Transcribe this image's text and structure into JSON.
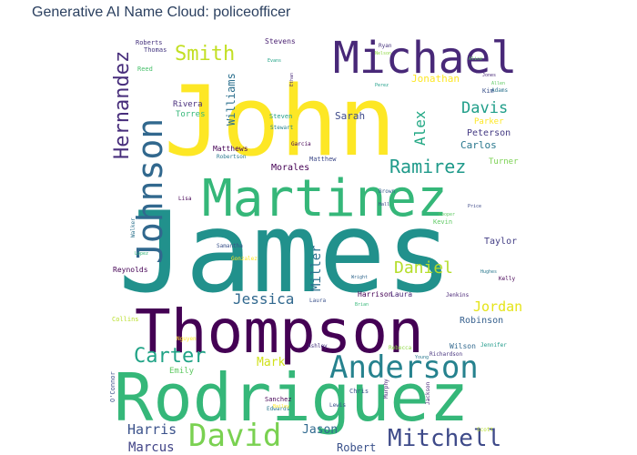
{
  "chart_data": {
    "type": "wordcloud",
    "title": "Generative AI Name Cloud: policeofficer",
    "palette": "viridis",
    "words": [
      {
        "text": "James",
        "color": "#21918c"
      },
      {
        "text": "John",
        "color": "#fde725"
      },
      {
        "text": "Rodriguez",
        "color": "#35b779"
      },
      {
        "text": "Thompson",
        "color": "#440154"
      },
      {
        "text": "Martinez",
        "color": "#35b779"
      },
      {
        "text": "Johnson",
        "color": "#31688e"
      },
      {
        "text": "Michael",
        "color": "#482878"
      },
      {
        "text": "Anderson",
        "color": "#26828e"
      },
      {
        "text": "David",
        "color": "#7ad151"
      },
      {
        "text": "Mitchell",
        "color": "#3e4a89"
      },
      {
        "text": "Hernandez",
        "color": "#472d7b"
      },
      {
        "text": "Ramirez",
        "color": "#1f9a8a"
      },
      {
        "text": "Carter",
        "color": "#20a386"
      },
      {
        "text": "Daniel",
        "color": "#b5de2b"
      },
      {
        "text": "Smith",
        "color": "#c2df23"
      },
      {
        "text": "Jessica",
        "color": "#31688e"
      },
      {
        "text": "Davis",
        "color": "#1f9e89"
      },
      {
        "text": "Alex",
        "color": "#22a884"
      },
      {
        "text": "Harris",
        "color": "#3b528b"
      },
      {
        "text": "Marcus",
        "color": "#414487"
      },
      {
        "text": "Jordan",
        "color": "#e5e419"
      },
      {
        "text": "Jonathan",
        "color": "#fde725"
      },
      {
        "text": "Miller",
        "color": "#2c728e"
      },
      {
        "text": "Williams",
        "color": "#2d708e"
      },
      {
        "text": "Jason",
        "color": "#30698e"
      },
      {
        "text": "Robert",
        "color": "#3b528b"
      },
      {
        "text": "Mark",
        "color": "#d0e11c"
      },
      {
        "text": "Robinson",
        "color": "#355f8d"
      },
      {
        "text": "Carlos",
        "color": "#2a788e"
      },
      {
        "text": "Sarah",
        "color": "#3e4a89"
      },
      {
        "text": "Taylor",
        "color": "#433e85"
      },
      {
        "text": "Turner",
        "color": "#7ad151"
      },
      {
        "text": "Parker",
        "color": "#fde725"
      },
      {
        "text": "Morales",
        "color": "#440154"
      },
      {
        "text": "Peterson",
        "color": "#443a83"
      },
      {
        "text": "Emily",
        "color": "#5ec962"
      },
      {
        "text": "Rivera",
        "color": "#472d7b"
      },
      {
        "text": "Torres",
        "color": "#35b779"
      },
      {
        "text": "Stevens",
        "color": "#481f70"
      },
      {
        "text": "Matthews",
        "color": "#440154"
      },
      {
        "text": "Robertson",
        "color": "#2a788e"
      },
      {
        "text": "Thomas",
        "color": "#453781"
      },
      {
        "text": "Roberts",
        "color": "#46337e"
      },
      {
        "text": "Reed",
        "color": "#4ac16d"
      },
      {
        "text": "Wilson",
        "color": "#31688e"
      },
      {
        "text": "Harrison",
        "color": "#440154"
      },
      {
        "text": "Laura",
        "color": "#482475"
      },
      {
        "text": "Collins",
        "color": "#b8de29"
      },
      {
        "text": "Reynolds",
        "color": "#440154"
      },
      {
        "text": "Walker",
        "color": "#2c728e"
      },
      {
        "text": "Samantha",
        "color": "#3b528b"
      },
      {
        "text": "Matthew",
        "color": "#3e4a89"
      },
      {
        "text": "Steven",
        "color": "#1f9e89"
      },
      {
        "text": "Stewart",
        "color": "#26828e"
      },
      {
        "text": "Richardson",
        "color": "#46337e"
      },
      {
        "text": "Jennifer",
        "color": "#1f9a8a"
      },
      {
        "text": "Kevin",
        "color": "#5ec962"
      },
      {
        "text": "Ryan",
        "color": "#46337e"
      },
      {
        "text": "Sanchez",
        "color": "#440154"
      },
      {
        "text": "Edwards",
        "color": "#2a788e"
      },
      {
        "text": "Chris",
        "color": "#3b528b"
      },
      {
        "text": "Lewis",
        "color": "#3b528b"
      },
      {
        "text": "Murphy",
        "color": "#482878"
      },
      {
        "text": "Jackson",
        "color": "#482878"
      },
      {
        "text": "Rebecca",
        "color": "#8fd744"
      },
      {
        "text": "Ashley",
        "color": "#46337e"
      },
      {
        "text": "Brian",
        "color": "#35b779"
      },
      {
        "text": "Brown",
        "color": "#355f8d"
      },
      {
        "text": "Cooper",
        "color": "#5ec962"
      },
      {
        "text": "Hall",
        "color": "#3e4a89"
      },
      {
        "text": "Lisa",
        "color": "#440154"
      },
      {
        "text": "Jenkins",
        "color": "#482475"
      },
      {
        "text": "Young",
        "color": "#2a788e"
      },
      {
        "text": "Allen",
        "color": "#5ec962"
      },
      {
        "text": "Perez",
        "color": "#1f9e89"
      },
      {
        "text": "Alice",
        "color": "#5ec962"
      },
      {
        "text": "Wright",
        "color": "#31688e"
      },
      {
        "text": "O'Connor",
        "color": "#3b528b"
      },
      {
        "text": "Gonzalez",
        "color": "#fde725"
      },
      {
        "text": "Scott",
        "color": "#b5de2b"
      },
      {
        "text": "Nguyen",
        "color": "#fde725"
      },
      {
        "text": "Kelly",
        "color": "#440154"
      },
      {
        "text": "Garcia",
        "color": "#440154"
      },
      {
        "text": "Hughes",
        "color": "#2a788e"
      },
      {
        "text": "Evans",
        "color": "#20a386"
      },
      {
        "text": "Nelson",
        "color": "#8fd744"
      },
      {
        "text": "Adams",
        "color": "#2c728e"
      },
      {
        "text": "Price",
        "color": "#3e4a89"
      },
      {
        "text": "Jones",
        "color": "#482878"
      },
      {
        "text": "Bailey",
        "color": "#fde725"
      },
      {
        "text": "Kim",
        "color": "#3b528b"
      },
      {
        "text": "Lopez",
        "color": "#35b779"
      },
      {
        "text": "Ethan",
        "color": "#482878"
      },
      {
        "text": "Laura",
        "color": "#3b528b"
      }
    ]
  }
}
